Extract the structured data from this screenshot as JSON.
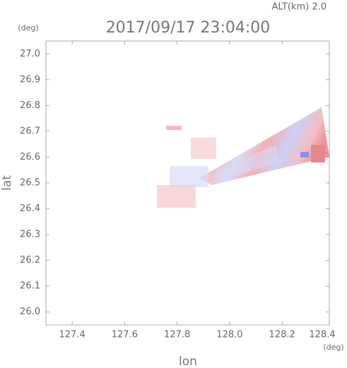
{
  "chart_data": {
    "type": "radar-field",
    "title": "2017/09/17 23:04:00",
    "subtitle": "ALT(km) 2.0",
    "x_label": "lon",
    "y_label": "lat",
    "x_unit": "(deg)",
    "y_unit": "(deg)",
    "xlim": [
      127.3,
      128.38
    ],
    "ylim": [
      25.95,
      27.05
    ],
    "xticks": [
      127.4,
      127.6,
      127.8,
      {
        "value": 128.0,
        "label": "128.0"
      },
      128.2,
      128.4
    ],
    "yticks": [
      {
        "value": 26.0,
        "label": "26.0"
      },
      26.1,
      26.2,
      26.3,
      26.4,
      26.5,
      26.6,
      26.7,
      26.8,
      26.9,
      {
        "value": 27.0,
        "label": "27.0"
      }
    ]
  }
}
